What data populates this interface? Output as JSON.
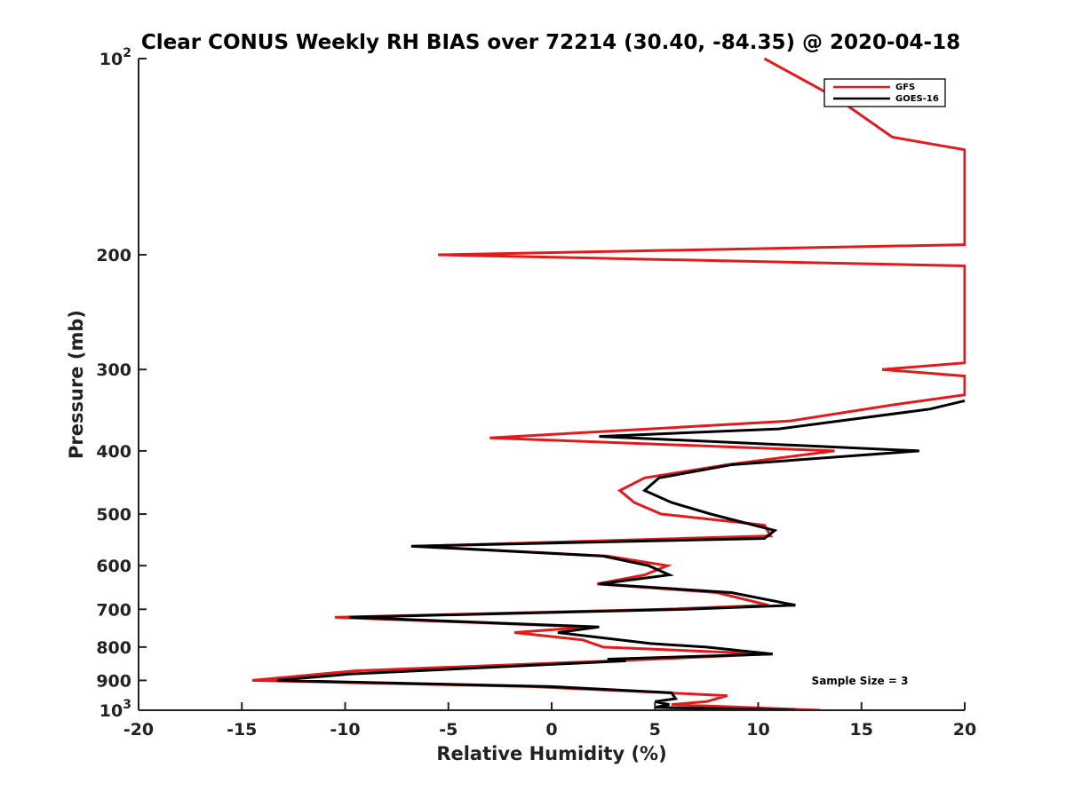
{
  "chart_data": {
    "type": "line",
    "title": "Clear CONUS Weekly RH BIAS over 72214 (30.40, -84.35) @ 2020-04-18",
    "xlabel": "Relative Humidity (%)",
    "ylabel": "Pressure (mb)",
    "xlim": [
      -20,
      20
    ],
    "ylim": [
      1000,
      100
    ],
    "yscale": "log",
    "xticks": [
      -20,
      -15,
      -10,
      -5,
      0,
      5,
      10,
      15,
      20
    ],
    "xtick_labels": [
      "-20",
      "-15",
      "-10",
      "-5",
      "0",
      "5",
      "10",
      "15",
      "20"
    ],
    "yticks": [
      100,
      200,
      300,
      400,
      500,
      600,
      700,
      800,
      900,
      1000
    ],
    "ytick_labels": [
      {
        "base": "10",
        "exp": "2"
      },
      {
        "base": "200",
        "exp": ""
      },
      {
        "base": "300",
        "exp": ""
      },
      {
        "base": "400",
        "exp": ""
      },
      {
        "base": "500",
        "exp": ""
      },
      {
        "base": "600",
        "exp": ""
      },
      {
        "base": "700",
        "exp": ""
      },
      {
        "base": "800",
        "exp": ""
      },
      {
        "base": "900",
        "exp": ""
      },
      {
        "base": "10",
        "exp": "3"
      }
    ],
    "legend_position": "top-right",
    "annotation": "Sample Size = 3",
    "series": [
      {
        "name": "GFS",
        "color": "#e31a1c",
        "points": [
          [
            10.3,
            100
          ],
          [
            13.8,
            115
          ],
          [
            16.5,
            132
          ],
          [
            20.0,
            138
          ],
          [
            20.0,
            193
          ],
          [
            -5.5,
            200
          ],
          [
            20.0,
            208
          ],
          [
            20.0,
            293
          ],
          [
            16.0,
            300
          ],
          [
            20.0,
            307
          ],
          [
            20.0,
            328
          ],
          [
            16.5,
            340
          ],
          [
            11.5,
            360
          ],
          [
            -3.0,
            382
          ],
          [
            13.7,
            400
          ],
          [
            8.5,
            420
          ],
          [
            4.5,
            440
          ],
          [
            3.3,
            460
          ],
          [
            4.0,
            480
          ],
          [
            5.3,
            500
          ],
          [
            10.3,
            520
          ],
          [
            10.6,
            540
          ],
          [
            -6.5,
            560
          ],
          [
            2.7,
            580
          ],
          [
            5.6,
            600
          ],
          [
            4.5,
            620
          ],
          [
            2.2,
            640
          ],
          [
            8.0,
            660
          ],
          [
            10.5,
            690
          ],
          [
            5.5,
            700
          ],
          [
            -10.5,
            720
          ],
          [
            1.8,
            745
          ],
          [
            -1.8,
            760
          ],
          [
            1.5,
            780
          ],
          [
            2.5,
            800
          ],
          [
            10.5,
            820
          ],
          [
            3.0,
            840
          ],
          [
            -9.5,
            870
          ],
          [
            -14.5,
            900
          ],
          [
            -1.0,
            920
          ],
          [
            5.5,
            940
          ],
          [
            8.5,
            950
          ],
          [
            7.5,
            970
          ],
          [
            5.8,
            980
          ],
          [
            13.0,
            1000
          ]
        ]
      },
      {
        "name": "GOES-16",
        "color": "#000000",
        "points": [
          [
            20.0,
            335
          ],
          [
            18.3,
            345
          ],
          [
            11.0,
            370
          ],
          [
            2.3,
            380
          ],
          [
            17.8,
            400
          ],
          [
            8.7,
            420
          ],
          [
            5.2,
            440
          ],
          [
            4.5,
            460
          ],
          [
            5.8,
            480
          ],
          [
            7.7,
            500
          ],
          [
            10.8,
            530
          ],
          [
            10.3,
            545
          ],
          [
            -6.8,
            560
          ],
          [
            2.5,
            580
          ],
          [
            4.7,
            600
          ],
          [
            5.7,
            620
          ],
          [
            2.3,
            640
          ],
          [
            8.7,
            660
          ],
          [
            11.8,
            690
          ],
          [
            6.5,
            700
          ],
          [
            -9.8,
            720
          ],
          [
            2.3,
            745
          ],
          [
            0.3,
            760
          ],
          [
            4.8,
            790
          ],
          [
            7.5,
            800
          ],
          [
            10.7,
            820
          ],
          [
            2.7,
            835
          ],
          [
            3.6,
            840
          ],
          [
            -9.8,
            880
          ],
          [
            -13.3,
            900
          ],
          [
            0.0,
            920
          ],
          [
            5.8,
            940
          ],
          [
            6.0,
            960
          ],
          [
            5.0,
            970
          ],
          [
            5.7,
            980
          ],
          [
            5.0,
            990
          ],
          [
            11.8,
            1000
          ]
        ]
      }
    ]
  }
}
